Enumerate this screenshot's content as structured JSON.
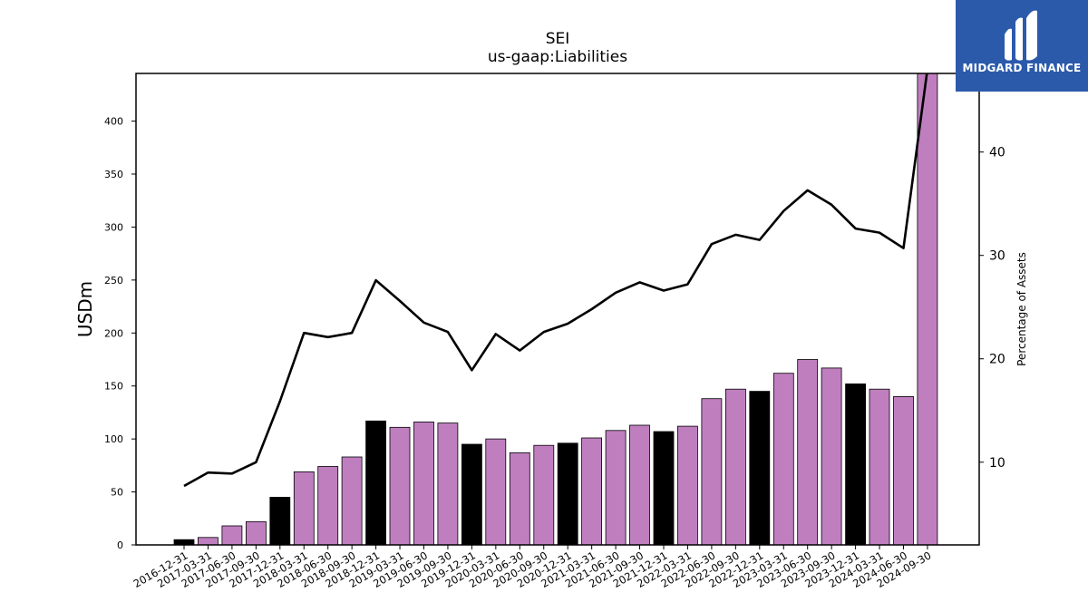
{
  "brand": {
    "name": "MIDGARD FINANCE",
    "bg_color": "#2b5aab"
  },
  "chart_data": {
    "type": "bar+line",
    "title": "SEI",
    "subtitle": "us-gaap:Liabilities",
    "ylabel_left": "USDm",
    "ylabel_right": "Percentage of Assets",
    "ylim_left": [
      0,
      445
    ],
    "ylim_right": [
      2,
      47.6
    ],
    "yticks_left": [
      0,
      50,
      100,
      150,
      200,
      250,
      300,
      350,
      400
    ],
    "yticks_right": [
      10,
      20,
      30,
      40
    ],
    "categories": [
      "2016-12-31",
      "2017-03-31",
      "2017-06-30",
      "2017-09-30",
      "2017-12-31",
      "2018-03-31",
      "2018-06-30",
      "2018-09-30",
      "2018-12-31",
      "2019-03-31",
      "2019-06-30",
      "2019-09-30",
      "2019-12-31",
      "2020-03-31",
      "2020-06-30",
      "2020-09-30",
      "2020-12-31",
      "2021-03-31",
      "2021-06-30",
      "2021-09-30",
      "2021-12-31",
      "2022-03-31",
      "2022-06-30",
      "2022-09-30",
      "2022-12-31",
      "2023-03-31",
      "2023-06-30",
      "2023-09-30",
      "2023-12-31",
      "2024-03-31",
      "2024-06-30",
      "2024-09-30"
    ],
    "bar_values": [
      5,
      7,
      18,
      22,
      45,
      69,
      74,
      83,
      117,
      111,
      116,
      115,
      95,
      100,
      87,
      94,
      96,
      101,
      108,
      113,
      107,
      112,
      138,
      147,
      145,
      162,
      175,
      167,
      152,
      147,
      140,
      450
    ],
    "line_values": [
      7.7,
      9.0,
      8.9,
      10.0,
      15.9,
      22.5,
      22.1,
      22.5,
      27.6,
      25.6,
      23.5,
      22.6,
      18.9,
      22.4,
      20.8,
      22.6,
      23.4,
      24.8,
      26.4,
      27.4,
      26.6,
      27.2,
      31.1,
      32.0,
      31.5,
      34.3,
      36.3,
      34.9,
      32.6,
      32.2,
      30.7,
      48.0
    ],
    "bar_colors": {
      "year_end": "#000000",
      "quarter": "#bf7fbf"
    },
    "line_color": "#000000",
    "grid": false,
    "legend": "none"
  }
}
